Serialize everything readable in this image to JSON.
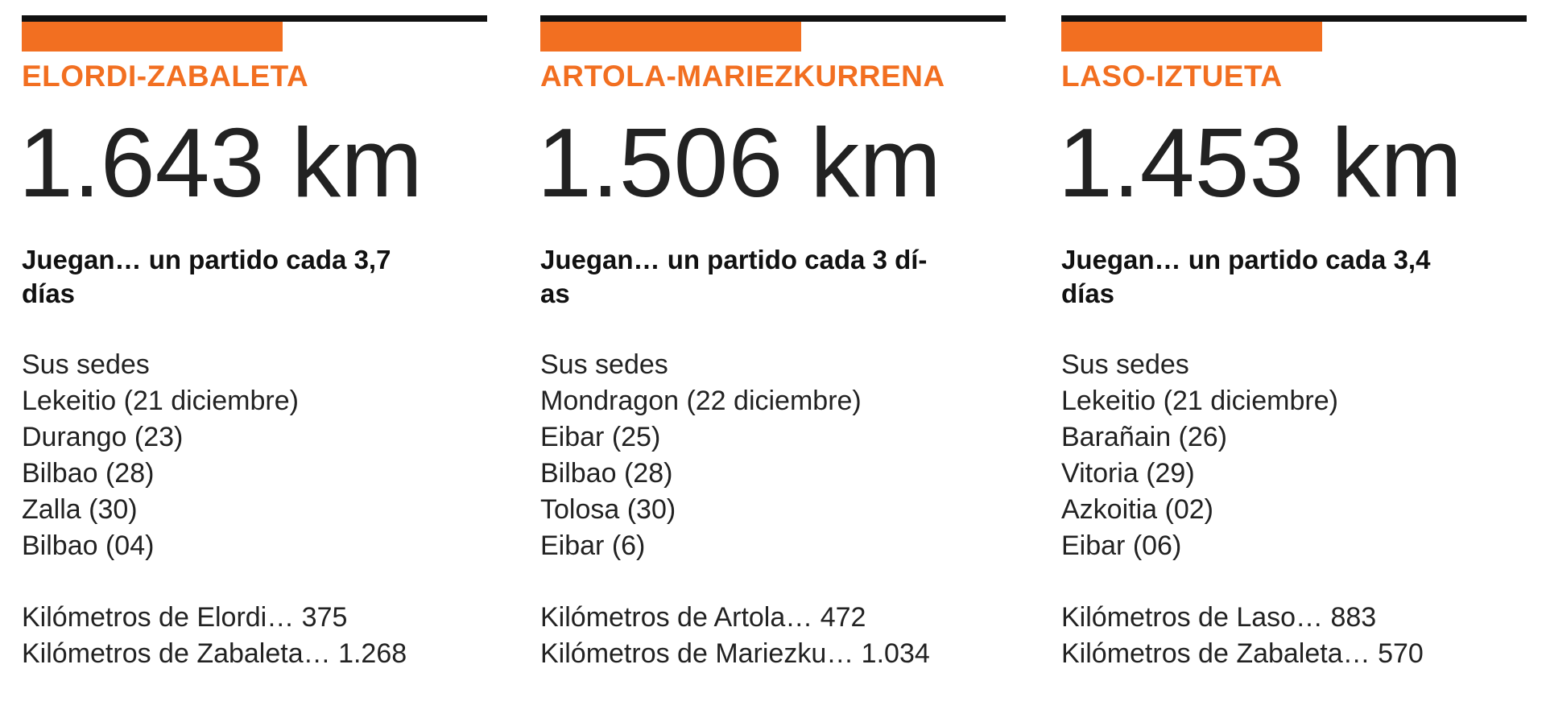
{
  "columns": [
    {
      "name": "ELORDI-ZABALETA",
      "distance": "1.643 km",
      "subtitle_lines": [
        "Juegan… un partido cada 3,7",
        "días"
      ],
      "venues_heading": "Sus sedes",
      "venues": [
        "Lekeitio (21 diciembre)",
        "Durango (23)",
        "Bilbao (28)",
        "Zalla (30)",
        "Bilbao (04)"
      ],
      "km_lines": [
        "Kilómetros de Elordi… 375",
        "Kilómetros de Zabaleta… 1.268"
      ]
    },
    {
      "name": "ARTOLA-MARIEZKURRENA",
      "distance": "1.506 km",
      "subtitle_lines": [
        "Juegan… un partido cada 3 dí-",
        "as"
      ],
      "venues_heading": "Sus sedes",
      "venues": [
        "Mondragon (22 diciembre)",
        "Eibar (25)",
        "Bilbao (28)",
        "Tolosa (30)",
        "Eibar (6)"
      ],
      "km_lines": [
        "Kilómetros de Artola… 472",
        "Kilómetros de Mariezku… 1.034"
      ]
    },
    {
      "name": "LASO-IZTUETA",
      "distance": "1.453 km",
      "subtitle_lines": [
        "Juegan… un partido cada 3,4",
        "días"
      ],
      "venues_heading": "Sus sedes",
      "venues": [
        "Lekeitio (21 diciembre)",
        "Barañain (26)",
        "Vitoria (29)",
        "Azkoitia (02)",
        "Eibar (06)"
      ],
      "km_lines": [
        "Kilómetros de Laso… 883",
        "Kilómetros de Zabaleta… 570"
      ]
    }
  ]
}
